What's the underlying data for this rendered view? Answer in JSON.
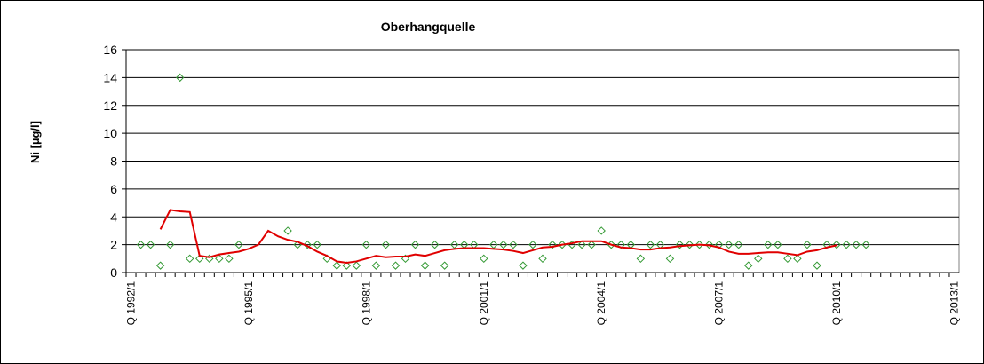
{
  "chart_data": {
    "type": "scatter-line",
    "title": "Oberhangquelle",
    "y_label": "Ni [µg/l]",
    "categories": [
      "Q 1992/1",
      null,
      null,
      null,
      null,
      null,
      null,
      null,
      null,
      null,
      null,
      null,
      "Q 1995/1",
      null,
      null,
      null,
      null,
      null,
      null,
      null,
      null,
      null,
      null,
      null,
      "Q 1998/1",
      null,
      null,
      null,
      null,
      null,
      null,
      null,
      null,
      null,
      null,
      null,
      "Q 2001/1",
      null,
      null,
      null,
      null,
      null,
      null,
      null,
      null,
      null,
      null,
      null,
      "Q 2004/1",
      null,
      null,
      null,
      null,
      null,
      null,
      null,
      null,
      null,
      null,
      null,
      "Q 2007/1",
      null,
      null,
      null,
      null,
      null,
      null,
      null,
      null,
      null,
      null,
      null,
      "Q 2010/1",
      null,
      null,
      null,
      null,
      null,
      null,
      null,
      null,
      null,
      null,
      null,
      "Q 2013/1"
    ],
    "series": [
      {
        "type": "scatter",
        "marker": "diamond",
        "color": "#339933",
        "values": [
          null,
          2,
          2,
          0.5,
          2,
          14,
          1,
          1,
          1,
          1,
          1,
          2,
          null,
          null,
          null,
          null,
          3,
          2,
          2,
          2,
          1,
          0.5,
          0.5,
          0.5,
          2,
          0.5,
          2,
          0.5,
          1,
          2,
          0.5,
          2,
          0.5,
          2,
          2,
          2,
          1,
          2,
          2,
          2,
          0.5,
          2,
          1,
          2,
          2,
          2,
          2,
          2,
          3,
          2,
          2,
          2,
          1,
          2,
          2,
          1,
          2,
          2,
          2,
          2,
          2,
          2,
          2,
          0.5,
          1,
          2,
          2,
          1,
          1,
          2,
          0.5,
          2,
          2,
          2,
          2,
          2,
          null,
          null,
          null,
          null,
          null,
          null,
          null,
          null,
          null
        ]
      },
      {
        "type": "line",
        "color": "#e00000",
        "values": [
          null,
          null,
          null,
          3.1,
          4.5,
          4.4,
          4.35,
          1.2,
          1.1,
          1.3,
          1.4,
          1.5,
          1.7,
          2.0,
          3.0,
          2.6,
          2.35,
          2.2,
          1.9,
          1.5,
          1.2,
          0.8,
          0.7,
          0.8,
          1.0,
          1.2,
          1.1,
          1.15,
          1.15,
          1.3,
          1.2,
          1.4,
          1.6,
          1.7,
          1.75,
          1.75,
          1.75,
          1.7,
          1.65,
          1.55,
          1.4,
          1.6,
          1.8,
          1.85,
          2.0,
          2.1,
          2.25,
          2.25,
          2.25,
          2.0,
          1.8,
          1.75,
          1.65,
          1.65,
          1.75,
          1.8,
          1.9,
          1.95,
          2.0,
          1.95,
          1.8,
          1.5,
          1.35,
          1.35,
          1.4,
          1.45,
          1.45,
          1.35,
          1.25,
          1.5,
          1.6,
          1.8,
          1.95,
          null,
          null,
          null,
          null,
          null,
          null,
          null,
          null,
          null,
          null,
          null,
          null
        ]
      }
    ],
    "ylim": [
      0,
      16
    ],
    "yticks": [
      0,
      2,
      4,
      6,
      8,
      10,
      12,
      14,
      16
    ],
    "grid": true
  }
}
